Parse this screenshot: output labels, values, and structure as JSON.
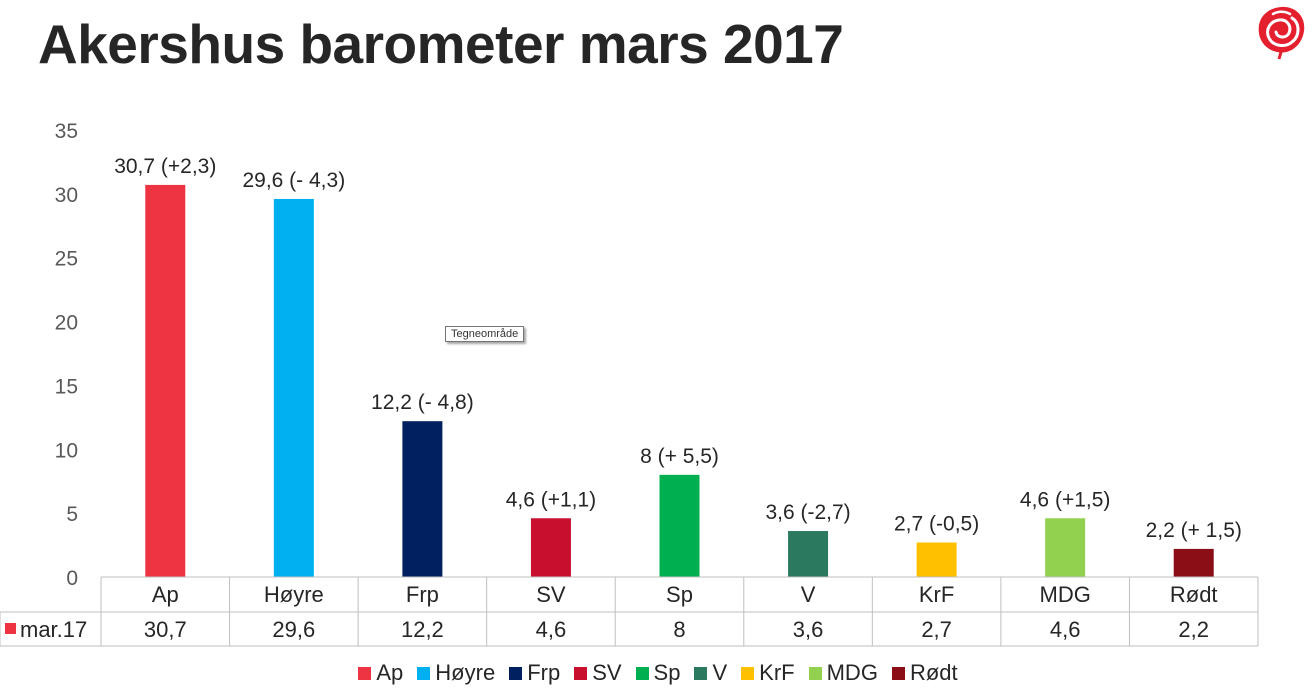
{
  "header": {
    "title": "Akershus barometer mars 2017",
    "logo_icon": "rose-icon"
  },
  "tooltip": {
    "text": "Tegneområde"
  },
  "chart_data": {
    "type": "bar",
    "title": "Akershus barometer mars 2017",
    "categories": [
      "Ap",
      "Høyre",
      "Frp",
      "SV",
      "Sp",
      "V",
      "KrF",
      "MDG",
      "Rødt"
    ],
    "values": [
      30.7,
      29.6,
      12.2,
      4.6,
      8,
      3.6,
      2.7,
      4.6,
      2.2
    ],
    "colors": [
      "#EE3342",
      "#00B0F0",
      "#002060",
      "#C8102E",
      "#00B050",
      "#2B7A5F",
      "#FFC000",
      "#92D050",
      "#8B0E16"
    ],
    "data_labels": [
      "30,7 (+2,3)",
      "29,6 (- 4,3)",
      "12,2 (- 4,8)",
      "4,6 (+1,1)",
      "8 (+ 5,5)",
      "3,6 (-2,7)",
      "2,7 (-0,5)",
      "4,6 (+1,5)",
      "2,2 (+ 1,5)"
    ],
    "ylim": [
      0,
      35
    ],
    "yticks": [
      "0",
      "5",
      "10",
      "15",
      "20",
      "25",
      "30",
      "35"
    ],
    "grid": false,
    "legend_position": "bottom",
    "data_table": {
      "series_name": "mar.17",
      "series_color": "#EE3342",
      "values": [
        "30,7",
        "29,6",
        "12,2",
        "4,6",
        "8",
        "3,6",
        "2,7",
        "4,6",
        "2,2"
      ]
    }
  }
}
